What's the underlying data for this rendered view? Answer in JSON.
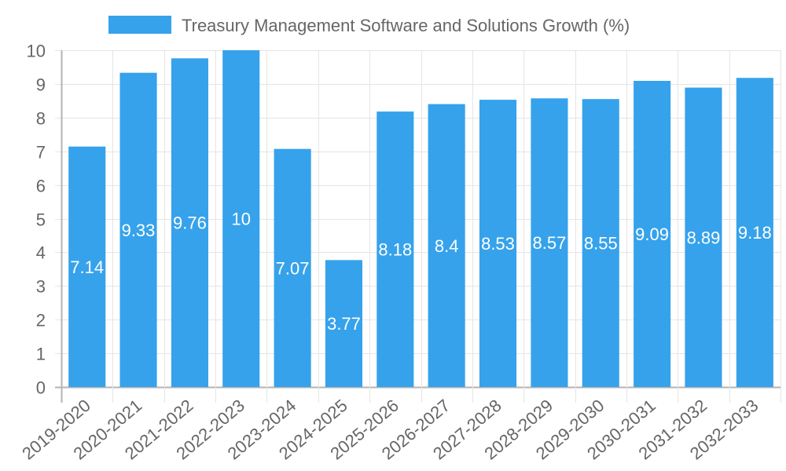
{
  "legend": {
    "label": "Treasury Management Software and Solutions Growth (%)",
    "color": "#36A2EB"
  },
  "colors": {
    "bar": "#36A2EB",
    "bar_border": "#36A2EB",
    "grid": "#E5E5E5",
    "axis": "#B3B3B3",
    "tick_text": "#666666",
    "value_text": "#FFFFFF"
  },
  "chart_data": {
    "type": "bar",
    "title": "",
    "xlabel": "",
    "ylabel": "",
    "categories": [
      "2019-2020",
      "2020-2021",
      "2021-2022",
      "2022-2023",
      "2023-2024",
      "2024-2025",
      "2025-2026",
      "2026-2027",
      "2027-2028",
      "2028-2029",
      "2029-2030",
      "2030-2031",
      "2031-2032",
      "2032-2033"
    ],
    "series": [
      {
        "name": "Treasury Management Software and Solutions Growth (%)",
        "values": [
          7.14,
          9.33,
          9.76,
          10,
          7.07,
          3.77,
          8.18,
          8.4,
          8.53,
          8.57,
          8.55,
          9.09,
          8.89,
          9.18
        ]
      }
    ],
    "value_labels": [
      "7.14",
      "9.33",
      "9.76",
      "10",
      "7.07",
      "3.77",
      "8.18",
      "8.4",
      "8.53",
      "8.57",
      "8.55",
      "9.09",
      "8.89",
      "9.18"
    ],
    "ylim": [
      0,
      10
    ],
    "yticks": [
      "0",
      "1",
      "2",
      "3",
      "4",
      "5",
      "6",
      "7",
      "8",
      "9",
      "10"
    ],
    "grid": true,
    "legend_position": "top",
    "x_tick_rotation": -40
  }
}
